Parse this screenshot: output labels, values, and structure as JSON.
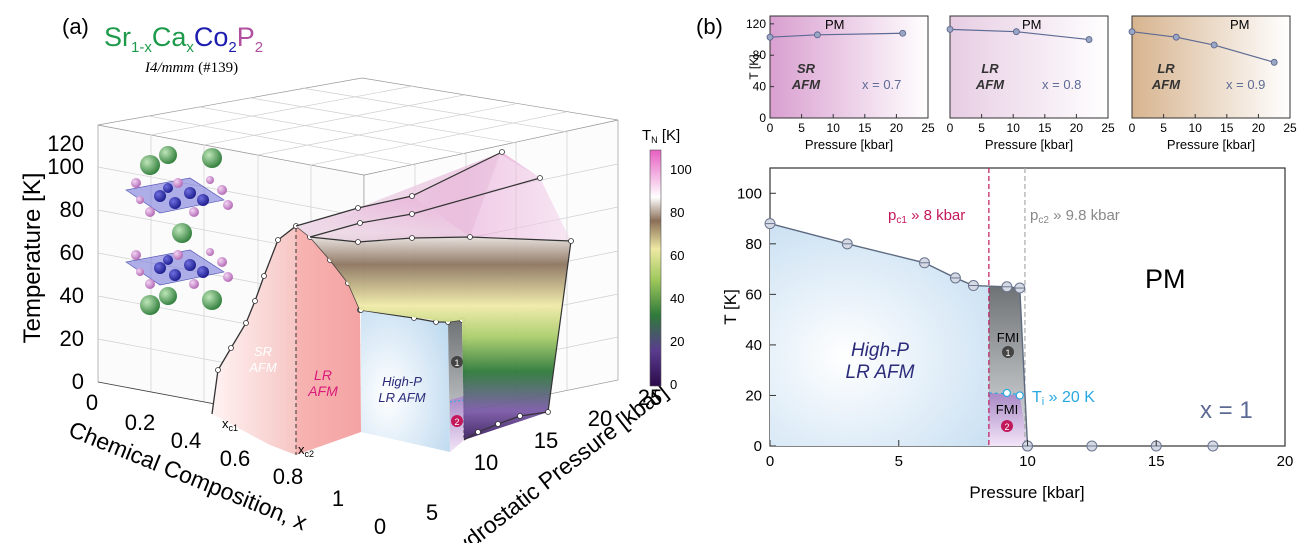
{
  "panel_a": {
    "label": "(a)",
    "formula": {
      "sr": "Sr",
      "sub1": "1-x",
      "ca": "Ca",
      "sub2": "x",
      "co": "Co",
      "sub3": "2",
      "p": "P",
      "sub4": "2"
    },
    "space_group_italic": "I4/mmm",
    "space_group_num": "(#139)",
    "z_axis_label": "Temperature [K]",
    "z_ticks": [
      "0",
      "20",
      "40",
      "60",
      "80",
      "100",
      "120"
    ],
    "x_axis_label": "Chemical Composition, x",
    "x_ticks": [
      "0",
      "0.2",
      "0.4",
      "0.6",
      "0.8",
      "1"
    ],
    "y_axis_label": "Hydrostatic Pressure [kbar]",
    "y_ticks": [
      "0",
      "5",
      "10",
      "15",
      "20",
      "25"
    ],
    "colorbar_label": "T",
    "colorbar_sub": "N",
    "colorbar_unit": " [K]",
    "colorbar_ticks": [
      "0",
      "20",
      "40",
      "60",
      "80",
      "100"
    ],
    "region_sr": [
      "SR",
      "AFM"
    ],
    "region_lr": [
      "LR",
      "AFM"
    ],
    "region_highp": [
      "High-P",
      "LR AFM"
    ],
    "xc1_main": "x",
    "xc1_sub": "c1",
    "xc2_main": "x",
    "xc2_sub": "c2",
    "badge1": "1",
    "badge2": "2"
  },
  "panel_b": {
    "label": "(b)",
    "insets": [
      {
        "x": 0.7,
        "x_label": "x = 0.7",
        "region": [
          "SR",
          "AFM"
        ],
        "pm": "PM",
        "color": "#d99fd0",
        "points": [
          [
            0,
            103
          ],
          [
            7.5,
            106
          ],
          [
            21,
            108
          ]
        ]
      },
      {
        "x": 0.8,
        "x_label": "x = 0.8",
        "region": [
          "LR",
          "AFM"
        ],
        "pm": "PM",
        "color": "#d9b7d6",
        "points": [
          [
            0,
            113
          ],
          [
            10.5,
            110
          ],
          [
            22,
            100
          ]
        ]
      },
      {
        "x": 0.9,
        "x_label": "x = 0.9",
        "region": [
          "LR",
          "AFM"
        ],
        "pm": "PM",
        "color": "#d7b48f",
        "points": [
          [
            0,
            110
          ],
          [
            7,
            103
          ],
          [
            13,
            93
          ],
          [
            22.5,
            71
          ]
        ]
      }
    ],
    "inset_ylabel": "T [K]",
    "inset_xlabel": "Pressure [kbar]",
    "inset_xticks": [
      "0",
      "5",
      "10",
      "15",
      "20",
      "25"
    ],
    "inset_yticks": [
      "0",
      "40",
      "80",
      "120"
    ],
    "main": {
      "ylabel": "T [K]",
      "xlabel": "Pressure [kbar]",
      "xticks": [
        "0",
        "5",
        "10",
        "15",
        "20"
      ],
      "yticks": [
        "0",
        "20",
        "40",
        "60",
        "80",
        "100"
      ],
      "pc1_text": "p",
      "pc1_sub": "c1",
      "pc1_val": " » 8 kbar",
      "pc2_text": "p",
      "pc2_sub": "c2",
      "pc2_val": " » 9.8 kbar",
      "pm": "PM",
      "highp": [
        "High-P",
        "LR AFM"
      ],
      "fmi": "FMI",
      "ti_main": "T",
      "ti_sub": "i",
      "ti_val": " » 20 K",
      "x_label": "x = 1",
      "badge1": "1",
      "badge2": "2"
    }
  },
  "chart_data": [
    {
      "type": "area",
      "panel": "(a)",
      "description_axes": {
        "x": "Chemical Composition, x",
        "y": "Hydrostatic Pressure [kbar]",
        "z": "Temperature [K]"
      },
      "zlim": [
        0,
        120
      ],
      "xlim": [
        0,
        1
      ],
      "ylim": [
        0,
        25
      ],
      "colorbar": {
        "label": "T_N [K]",
        "range": [
          0,
          110
        ]
      }
    },
    {
      "type": "line",
      "panel": "(b) x = 1",
      "xlabel": "Pressure [kbar]",
      "ylabel": "T [K]",
      "xlim": [
        0,
        20
      ],
      "ylim": [
        0,
        110
      ],
      "series": [
        {
          "x": [
            0,
            3,
            6,
            7.2,
            7.9,
            9.2,
            9.7,
            10
          ],
          "values": [
            88,
            80,
            72.5,
            66.5,
            63.5,
            63,
            62.5,
            0
          ]
        },
        {
          "x": [
            10,
            12.5,
            15,
            17.2
          ],
          "values": [
            0,
            0,
            0,
            0
          ]
        }
      ],
      "ti_points": {
        "x": [
          9.2,
          9.7
        ],
        "values": [
          21,
          20
        ]
      },
      "pc1": 8.5,
      "pc2": 9.9
    }
  ]
}
